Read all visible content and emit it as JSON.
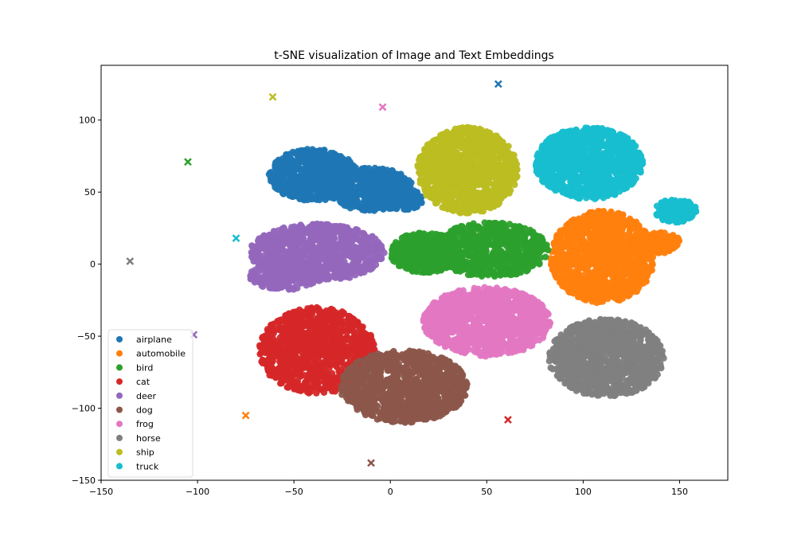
{
  "chart_data": {
    "type": "scatter",
    "title": "t-SNE visualization of Image and Text Embeddings",
    "xlabel": "",
    "ylabel": "",
    "xlim": [
      -150,
      175
    ],
    "ylim": [
      -150,
      138
    ],
    "xticks": [
      -150,
      -100,
      -50,
      0,
      50,
      100,
      150
    ],
    "yticks": [
      -150,
      -100,
      -50,
      0,
      50,
      100
    ],
    "grid": false,
    "legend_position": "lower-left",
    "series": [
      {
        "name": "airplane",
        "color": "#1f77b4",
        "clusters": [
          {
            "type": "ellipse",
            "center": [
              -40,
              62
            ],
            "rx": 23,
            "ry": 18,
            "n": 700
          },
          {
            "type": "ellipse",
            "center": [
              -10,
              52
            ],
            "rx": 22,
            "ry": 15,
            "n": 500
          },
          {
            "type": "ellipse",
            "center": [
              5,
              45
            ],
            "rx": 12,
            "ry": 8,
            "n": 150
          }
        ],
        "text_point": [
          56,
          125
        ]
      },
      {
        "name": "automobile",
        "color": "#ff7f0e",
        "clusters": [
          {
            "type": "ellipse",
            "center": [
              110,
              5
            ],
            "rx": 27,
            "ry": 32,
            "n": 1100
          },
          {
            "type": "ellipse",
            "center": [
              140,
              15
            ],
            "rx": 10,
            "ry": 8,
            "n": 120
          }
        ],
        "text_point": [
          -75,
          -105
        ]
      },
      {
        "name": "bird",
        "color": "#2ca02c",
        "clusters": [
          {
            "type": "ellipse",
            "center": [
              18,
              8
            ],
            "rx": 18,
            "ry": 14,
            "n": 450
          },
          {
            "type": "ellipse",
            "center": [
              52,
              10
            ],
            "rx": 30,
            "ry": 19,
            "n": 700
          }
        ],
        "text_point": [
          -105,
          71
        ]
      },
      {
        "name": "cat",
        "color": "#d62728",
        "clusters": [
          {
            "type": "ellipse",
            "center": [
              -38,
              -60
            ],
            "rx": 30,
            "ry": 30,
            "n": 1100
          }
        ],
        "text_point": [
          61,
          -108
        ]
      },
      {
        "name": "deer",
        "color": "#9467bd",
        "clusters": [
          {
            "type": "ellipse",
            "center": [
              -38,
              8
            ],
            "rx": 35,
            "ry": 20,
            "n": 900
          },
          {
            "type": "ellipse",
            "center": [
              -55,
              -8
            ],
            "rx": 18,
            "ry": 10,
            "n": 200
          }
        ],
        "text_point": [
          -102,
          -49
        ]
      },
      {
        "name": "dog",
        "color": "#8c564b",
        "clusters": [
          {
            "type": "ellipse",
            "center": [
              7,
              -85
            ],
            "rx": 33,
            "ry": 25,
            "n": 1100
          }
        ],
        "text_point": [
          -10,
          -138
        ]
      },
      {
        "name": "frog",
        "color": "#e377c2",
        "clusters": [
          {
            "type": "ellipse",
            "center": [
              50,
              -40
            ],
            "rx": 33,
            "ry": 24,
            "n": 1100
          }
        ],
        "text_point": [
          -4,
          109
        ]
      },
      {
        "name": "horse",
        "color": "#7f7f7f",
        "clusters": [
          {
            "type": "ellipse",
            "center": [
              112,
              -65
            ],
            "rx": 30,
            "ry": 27,
            "n": 1100
          }
        ],
        "text_point": [
          -135,
          2
        ]
      },
      {
        "name": "ship",
        "color": "#bcbd22",
        "clusters": [
          {
            "type": "ellipse",
            "center": [
              40,
              65
            ],
            "rx": 26,
            "ry": 30,
            "n": 1100
          }
        ],
        "text_point": [
          -61,
          116
        ]
      },
      {
        "name": "truck",
        "color": "#17becf",
        "clusters": [
          {
            "type": "ellipse",
            "center": [
              103,
              70
            ],
            "rx": 28,
            "ry": 25,
            "n": 1100
          },
          {
            "type": "ellipse",
            "center": [
              148,
              37
            ],
            "rx": 11,
            "ry": 8,
            "n": 150
          }
        ],
        "text_point": [
          -80,
          18
        ]
      }
    ]
  }
}
